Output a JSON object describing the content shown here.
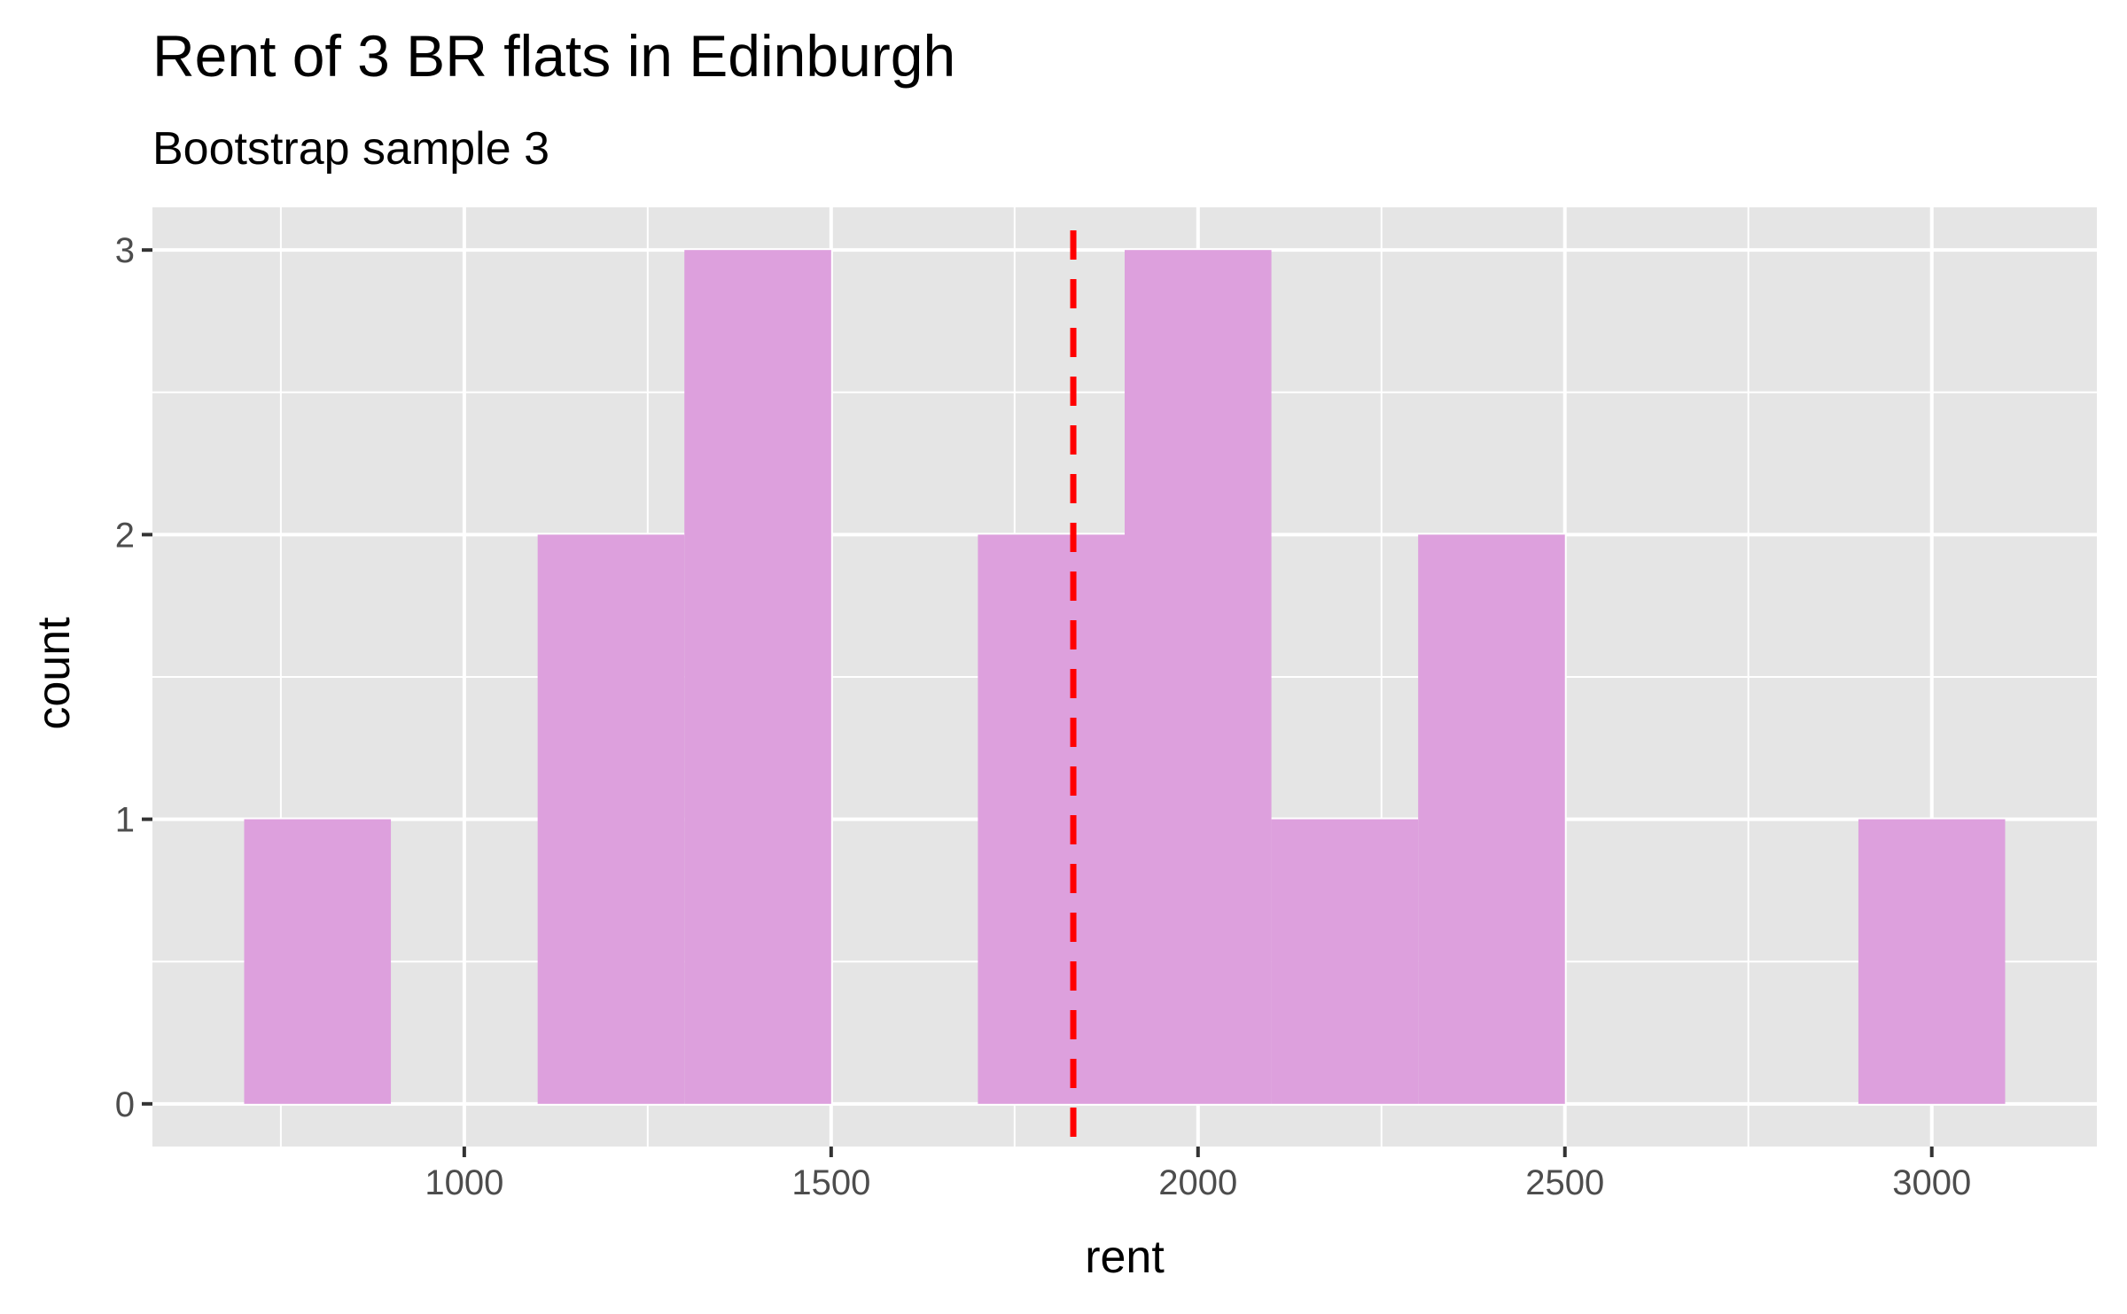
{
  "chart_data": {
    "type": "bar",
    "title": "Rent of 3 BR flats in Edinburgh",
    "subtitle": "Bootstrap sample 3",
    "xlabel": "rent",
    "ylabel": "count",
    "xlim": [
      575,
      3225
    ],
    "ylim": [
      -0.15,
      3.15
    ],
    "x_ticks": [
      1000,
      1500,
      2000,
      2500,
      3000
    ],
    "y_ticks": [
      0,
      1,
      2,
      3
    ],
    "grid": true,
    "bin_width": 200,
    "bins": [
      {
        "start": 700,
        "end": 900,
        "count": 1
      },
      {
        "start": 900,
        "end": 1100,
        "count": 0
      },
      {
        "start": 1100,
        "end": 1300,
        "count": 2
      },
      {
        "start": 1300,
        "end": 1500,
        "count": 3
      },
      {
        "start": 1500,
        "end": 1700,
        "count": 0
      },
      {
        "start": 1700,
        "end": 1900,
        "count": 2
      },
      {
        "start": 1900,
        "end": 2100,
        "count": 3
      },
      {
        "start": 2100,
        "end": 2300,
        "count": 1
      },
      {
        "start": 2300,
        "end": 2500,
        "count": 2
      },
      {
        "start": 2500,
        "end": 2700,
        "count": 0
      },
      {
        "start": 2700,
        "end": 2900,
        "count": 0
      },
      {
        "start": 2900,
        "end": 3100,
        "count": 1
      }
    ],
    "reference_line": {
      "x": 1830,
      "color": "#ff0000",
      "style": "dashed"
    },
    "colors": {
      "bar_fill": "#dda0dd",
      "panel": "#e5e5e5",
      "grid": "#ffffff",
      "reference_line": "#ff0000"
    }
  }
}
